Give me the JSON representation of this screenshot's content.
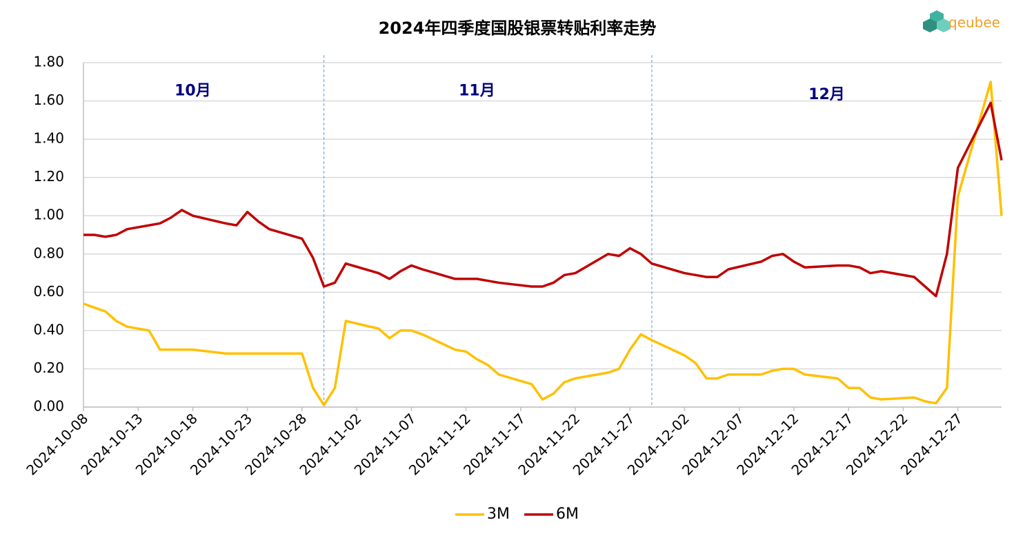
{
  "chart_data": {
    "type": "line",
    "title": "2024年四季度国股银票转贴利率走势",
    "logo": "qeubee",
    "x": [
      "2024-10-08",
      "2024-10-09",
      "2024-10-10",
      "2024-10-11",
      "2024-10-12",
      "2024-10-14",
      "2024-10-15",
      "2024-10-16",
      "2024-10-17",
      "2024-10-18",
      "2024-10-21",
      "2024-10-22",
      "2024-10-23",
      "2024-10-24",
      "2024-10-25",
      "2024-10-28",
      "2024-10-29",
      "2024-10-30",
      "2024-10-31",
      "2024-11-01",
      "2024-11-04",
      "2024-11-05",
      "2024-11-06",
      "2024-11-07",
      "2024-11-08",
      "2024-11-11",
      "2024-11-12",
      "2024-11-13",
      "2024-11-14",
      "2024-11-15",
      "2024-11-18",
      "2024-11-19",
      "2024-11-20",
      "2024-11-21",
      "2024-11-22",
      "2024-11-25",
      "2024-11-26",
      "2024-11-27",
      "2024-11-28",
      "2024-11-29",
      "2024-12-02",
      "2024-12-03",
      "2024-12-04",
      "2024-12-05",
      "2024-12-06",
      "2024-12-09",
      "2024-12-10",
      "2024-12-11",
      "2024-12-12",
      "2024-12-13",
      "2024-12-16",
      "2024-12-17",
      "2024-12-18",
      "2024-12-19",
      "2024-12-20",
      "2024-12-23",
      "2024-12-24",
      "2024-12-25",
      "2024-12-26",
      "2024-12-27",
      "2024-12-30",
      "2024-12-31"
    ],
    "series": [
      {
        "name": "3M",
        "color": "#ffc000",
        "values": [
          0.54,
          0.52,
          0.5,
          0.45,
          0.42,
          0.4,
          0.3,
          0.3,
          0.3,
          0.3,
          0.28,
          0.28,
          0.28,
          0.28,
          0.28,
          0.28,
          0.1,
          0.01,
          0.1,
          0.45,
          0.41,
          0.36,
          0.4,
          0.4,
          0.38,
          0.3,
          0.29,
          0.25,
          0.22,
          0.17,
          0.12,
          0.04,
          0.07,
          0.13,
          0.15,
          0.18,
          0.2,
          0.3,
          0.38,
          0.35,
          0.27,
          0.23,
          0.15,
          0.15,
          0.17,
          0.17,
          0.19,
          0.2,
          0.2,
          0.17,
          0.15,
          0.1,
          0.1,
          0.05,
          0.04,
          0.05,
          0.03,
          0.02,
          0.1,
          1.1,
          1.7,
          1.0
        ]
      },
      {
        "name": "6M",
        "color": "#c00000",
        "values": [
          0.9,
          0.9,
          0.89,
          0.9,
          0.93,
          0.95,
          0.96,
          0.99,
          1.03,
          1.0,
          0.96,
          0.95,
          1.02,
          0.97,
          0.93,
          0.88,
          0.78,
          0.63,
          0.65,
          0.75,
          0.7,
          0.67,
          0.71,
          0.74,
          0.72,
          0.67,
          0.67,
          0.67,
          0.66,
          0.65,
          0.63,
          0.63,
          0.65,
          0.69,
          0.7,
          0.8,
          0.79,
          0.83,
          0.8,
          0.75,
          0.7,
          0.69,
          0.68,
          0.68,
          0.72,
          0.76,
          0.79,
          0.8,
          0.76,
          0.73,
          0.74,
          0.74,
          0.73,
          0.7,
          0.71,
          0.68,
          0.63,
          0.58,
          0.8,
          1.25,
          1.59,
          1.29
        ]
      }
    ],
    "xlim": [
      "2024-10-08",
      "2024-12-31"
    ],
    "xticks": [
      "2024-10-08",
      "2024-10-13",
      "2024-10-18",
      "2024-10-23",
      "2024-10-28",
      "2024-11-02",
      "2024-11-07",
      "2024-11-12",
      "2024-11-17",
      "2024-11-22",
      "2024-11-27",
      "2024-12-02",
      "2024-12-07",
      "2024-12-12",
      "2024-12-17",
      "2024-12-22",
      "2024-12-27"
    ],
    "ylim": [
      0,
      1.8
    ],
    "yticks": [
      {
        "value": 0,
        "label": "0.00"
      },
      {
        "value": 0.2,
        "label": "0.20"
      },
      {
        "value": 0.4,
        "label": "0.40"
      },
      {
        "value": 0.6,
        "label": "0.60"
      },
      {
        "value": 0.8,
        "label": "0.80"
      },
      {
        "value": 1.0,
        "label": "1.00"
      },
      {
        "value": 1.2,
        "label": "1.20"
      },
      {
        "value": 1.4,
        "label": "1.40"
      },
      {
        "value": 1.6,
        "label": "1.60"
      },
      {
        "value": 1.8,
        "label": "1.80"
      }
    ],
    "grid": true,
    "dividers": [
      "2024-10-30",
      "2024-11-29"
    ],
    "annotations": [
      {
        "text": "10月",
        "x": "2024-10-18",
        "y": 1.65
      },
      {
        "text": "11月",
        "x": "2024-11-13",
        "y": 1.65
      },
      {
        "text": "12月",
        "x": "2024-12-15",
        "y": 1.63
      }
    ],
    "legend": "bottom"
  }
}
